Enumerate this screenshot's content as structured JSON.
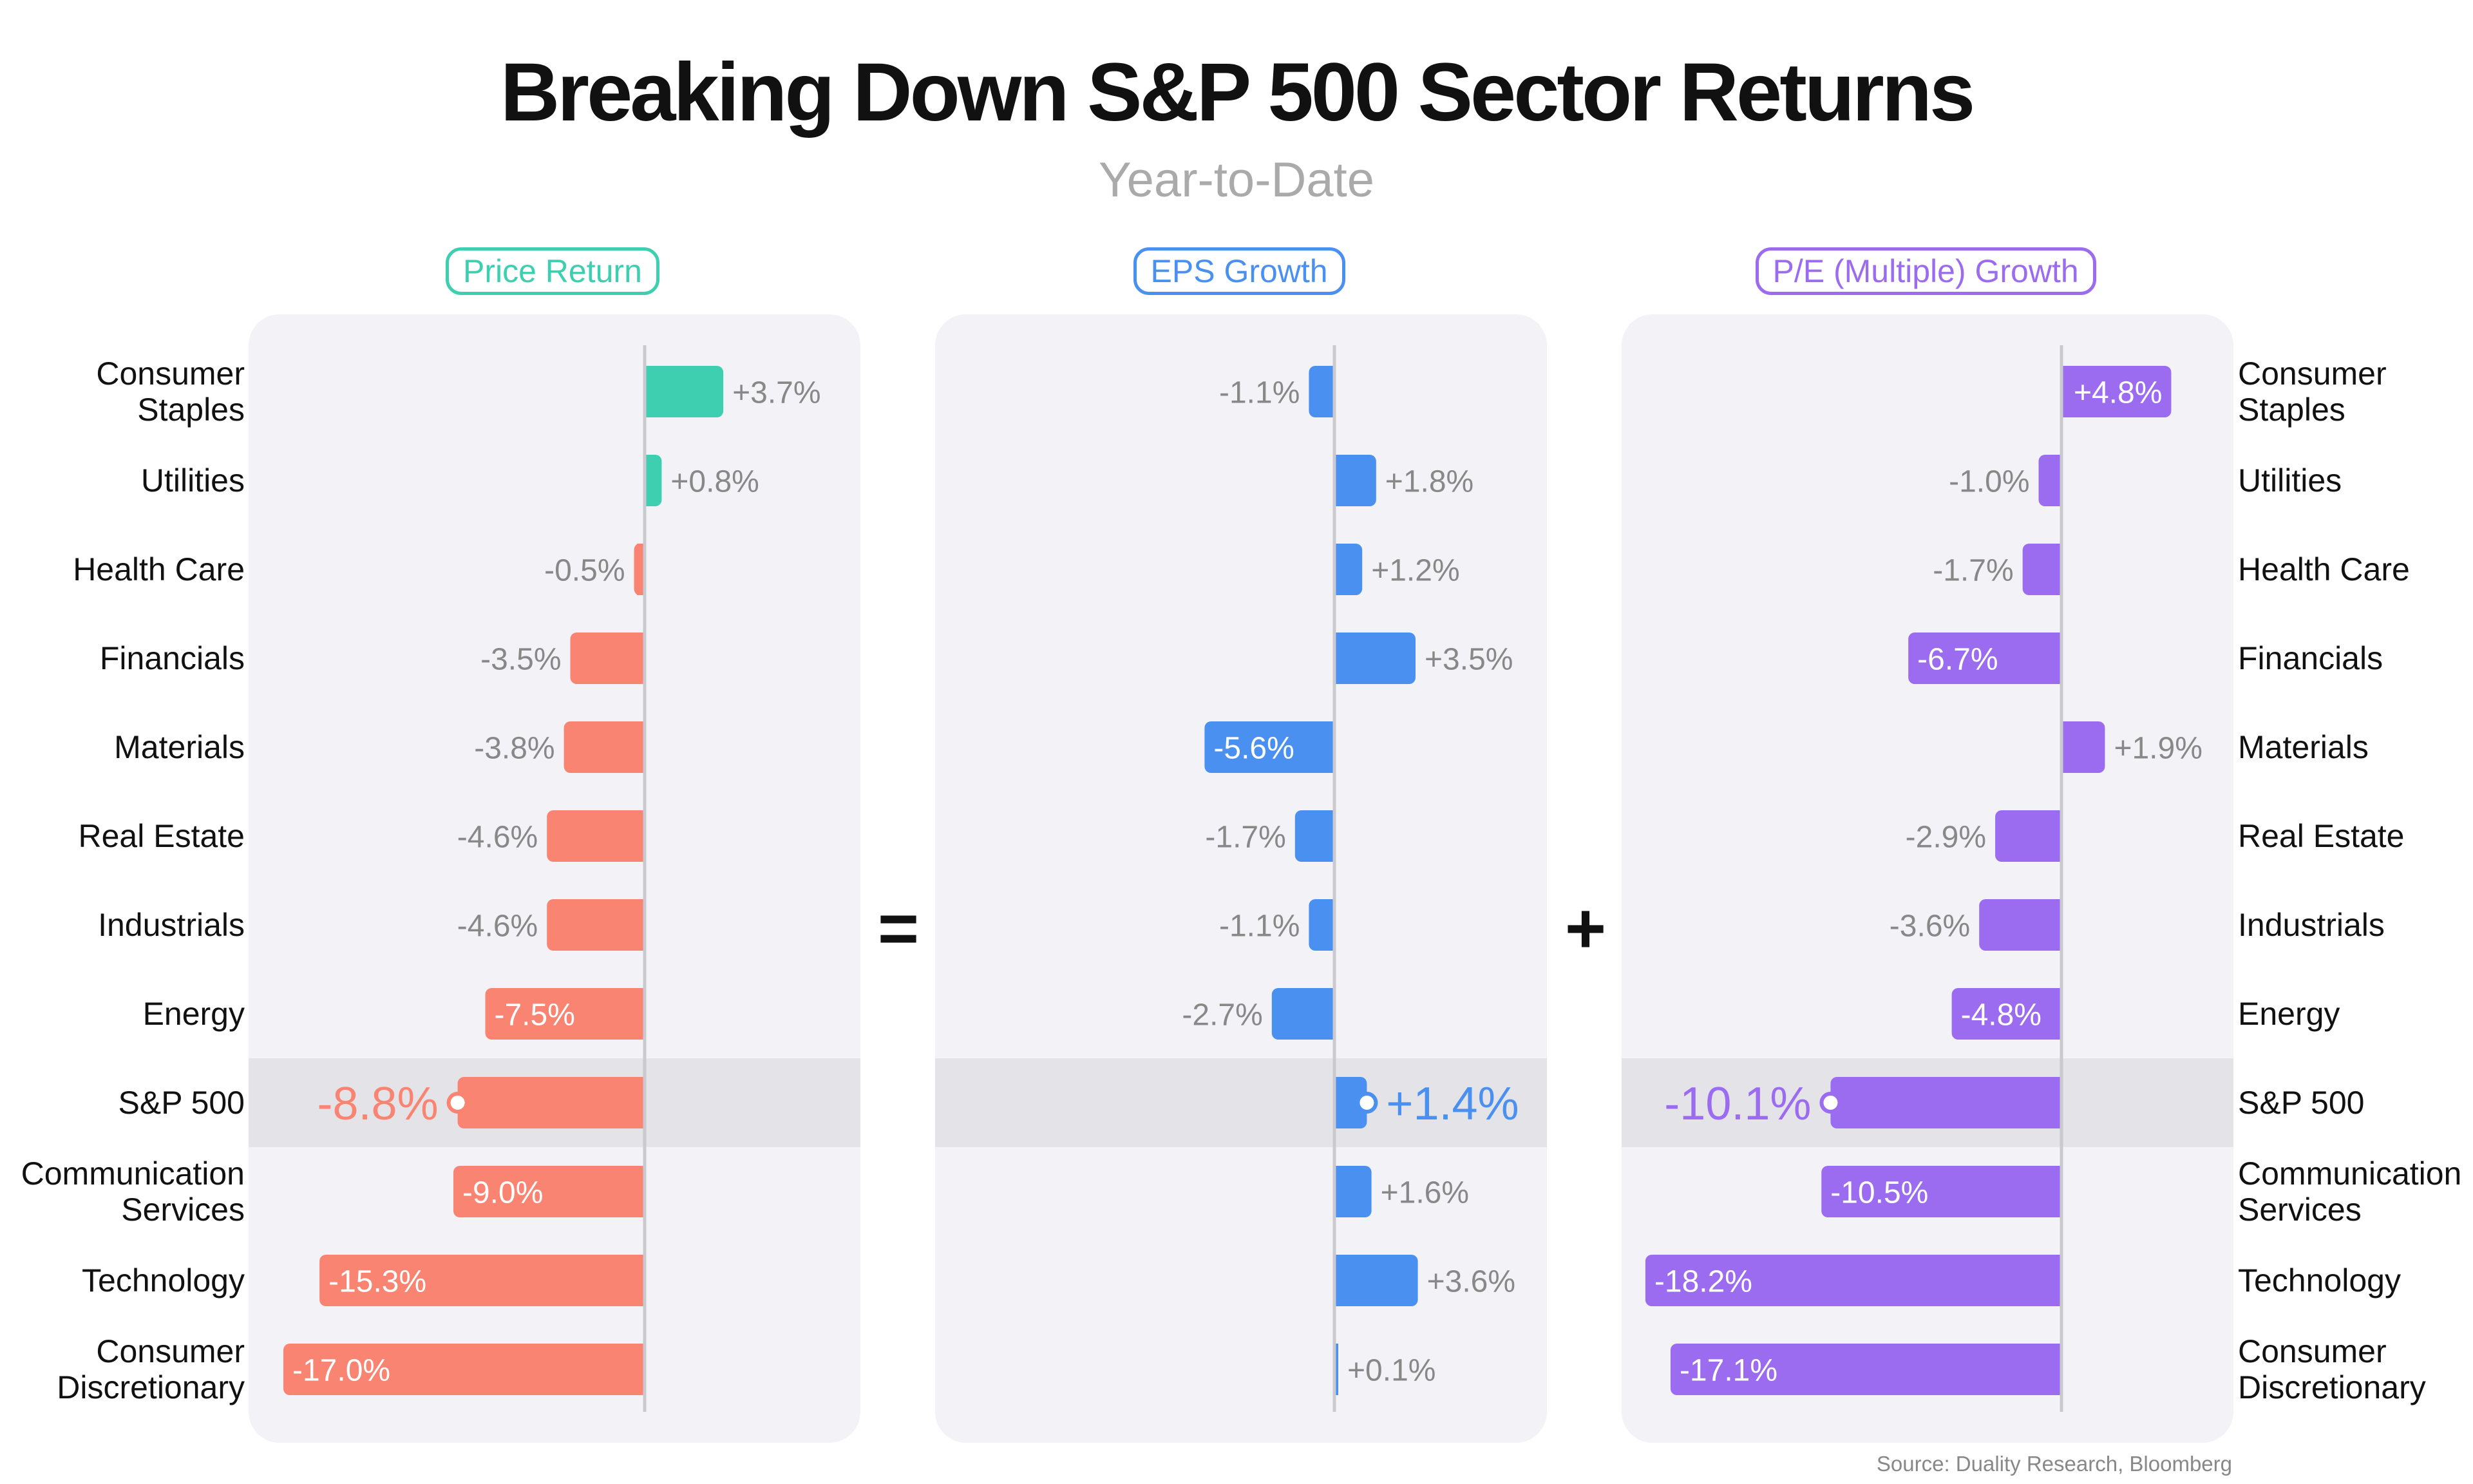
{
  "title": "Breaking Down S&P 500 Sector Returns",
  "subtitle": "Year-to-Date",
  "source": "Source: Duality Research, Bloomberg",
  "operators": {
    "equals": "=",
    "plus": "+"
  },
  "colors": {
    "positive_price": "#3dcfb0",
    "negative_price": "#f98472",
    "eps": "#4a90f0",
    "pe": "#9b6cf0",
    "label_gray": "#888888",
    "highlight_row": "#e3e3e8",
    "panel_bg": "#f3f3f7"
  },
  "chart_data": [
    {
      "type": "bar",
      "orientation": "horizontal",
      "title": "Price Return",
      "categories": [
        "Consumer Staples",
        "Utilities",
        "Health Care",
        "Financials",
        "Materials",
        "Real Estate",
        "Industrials",
        "Energy",
        "S&P 500",
        "Communication Services",
        "Technology",
        "Consumer Discretionary"
      ],
      "values": [
        3.7,
        0.8,
        -0.5,
        -3.5,
        -3.8,
        -4.6,
        -4.6,
        -7.5,
        -8.8,
        -9.0,
        -15.3,
        -17.0
      ],
      "labels": [
        "+3.7%",
        "+0.8%",
        "-0.5%",
        "-3.5%",
        "-3.8%",
        "-4.6%",
        "-4.6%",
        "-7.5%",
        "-8.8%",
        "-9.0%",
        "-15.3%",
        "-17.0%"
      ],
      "highlight": "S&P 500",
      "xlim": [
        -17.0,
        7.0
      ]
    },
    {
      "type": "bar",
      "orientation": "horizontal",
      "title": "EPS Growth",
      "categories": [
        "Consumer Staples",
        "Utilities",
        "Health Care",
        "Financials",
        "Materials",
        "Real Estate",
        "Industrials",
        "Energy",
        "S&P 500",
        "Communication Services",
        "Technology",
        "Consumer Discretionary"
      ],
      "values": [
        -1.1,
        1.8,
        1.2,
        3.5,
        -5.6,
        -1.7,
        -1.1,
        -2.7,
        1.4,
        1.6,
        3.6,
        0.1
      ],
      "labels": [
        "-1.1%",
        "+1.8%",
        "+1.2%",
        "+3.5%",
        "-5.6%",
        "-1.7%",
        "-1.1%",
        "-2.7%",
        "+1.4%",
        "+1.6%",
        "+3.6%",
        "+0.1%"
      ],
      "highlight": "S&P 500",
      "xlim": [
        -5.6,
        4.6
      ]
    },
    {
      "type": "bar",
      "orientation": "horizontal",
      "title": "P/E (Multiple) Growth",
      "categories": [
        "Consumer Staples",
        "Utilities",
        "Health Care",
        "Financials",
        "Materials",
        "Real Estate",
        "Industrials",
        "Energy",
        "S&P 500",
        "Communication Services",
        "Technology",
        "Consumer Discretionary"
      ],
      "values": [
        4.8,
        -1.0,
        -1.7,
        -6.7,
        1.9,
        -2.9,
        -3.6,
        -4.8,
        -10.1,
        -10.5,
        -18.2,
        -17.1
      ],
      "labels": [
        "+4.8%",
        "-1.0%",
        "-1.7%",
        "-6.7%",
        "+1.9%",
        "-2.9%",
        "-3.6%",
        "-4.8%",
        "-10.1%",
        "-10.5%",
        "-18.2%",
        "-17.1%"
      ],
      "highlight": "S&P 500",
      "xlim": [
        -18.2,
        7.2
      ]
    }
  ],
  "category_lines": [
    [
      "Consumer",
      "Staples"
    ],
    [
      "Utilities"
    ],
    [
      "Health Care"
    ],
    [
      "Financials"
    ],
    [
      "Materials"
    ],
    [
      "Real Estate"
    ],
    [
      "Industrials"
    ],
    [
      "Energy"
    ],
    [
      "S&P 500"
    ],
    [
      "Communication",
      "Services"
    ],
    [
      "Technology"
    ],
    [
      "Consumer",
      "Discretionary"
    ]
  ]
}
